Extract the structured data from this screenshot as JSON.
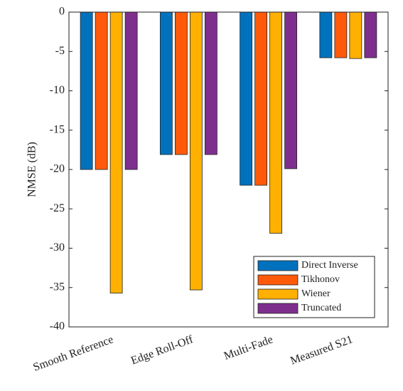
{
  "chart_data": {
    "type": "bar",
    "y_label": "NMSE (dB)",
    "categories": [
      "Smooth Reference",
      "Edge Roll-Off",
      "Multi-Fade",
      "Measured S21"
    ],
    "series": [
      {
        "name": "Direct Inverse",
        "color": "#0072bd",
        "values": [
          -20,
          -18.1,
          -22,
          -5.8
        ]
      },
      {
        "name": "Tikhonov",
        "color": "#ff5a0a",
        "values": [
          -20,
          -18.1,
          -22,
          -5.8
        ]
      },
      {
        "name": "Wiener",
        "color": "#ffb000",
        "values": [
          -35.7,
          -35.3,
          -28.1,
          -5.9
        ]
      },
      {
        "name": "Truncated",
        "color": "#7e2f8e",
        "values": [
          -20,
          -18.1,
          -19.9,
          -5.8
        ]
      }
    ],
    "ylim": [
      -40,
      0
    ],
    "yticks": [
      0,
      -5,
      -10,
      -15,
      -20,
      -25,
      -30,
      -35,
      -40
    ],
    "legend": "lower right"
  }
}
